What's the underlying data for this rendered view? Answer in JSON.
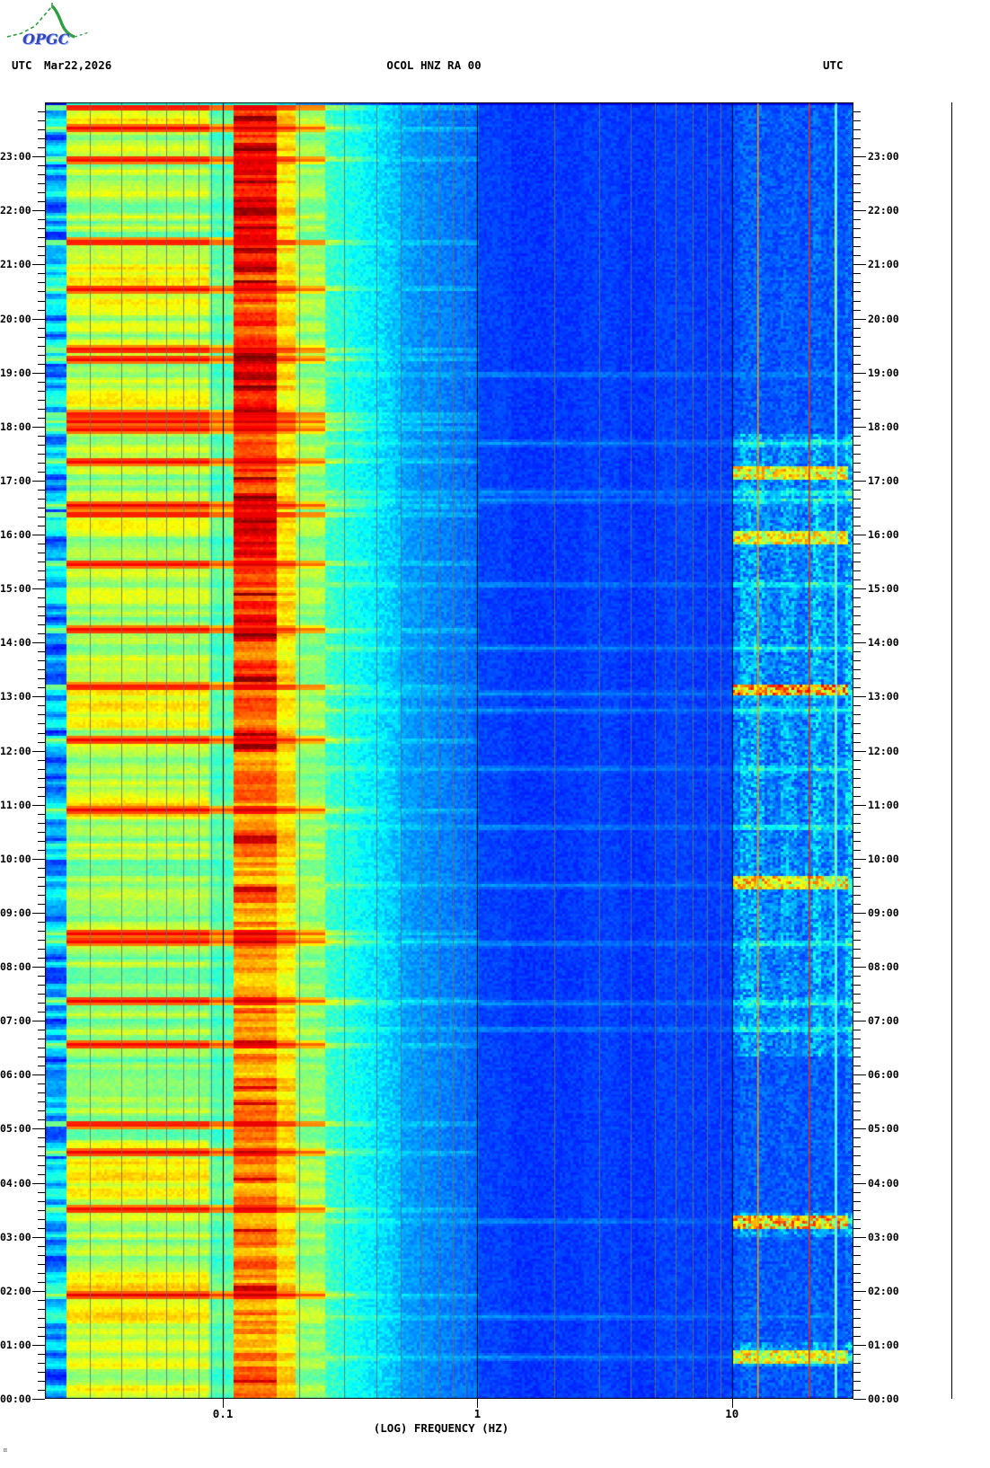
{
  "header": {
    "logo_text": "OPGC",
    "utc_left": "UTC",
    "date": "Mar22,2026",
    "title": "OCOL HNZ RA 00",
    "utc_right": "UTC"
  },
  "footer": {
    "corner_glyph": "¤"
  },
  "axes": {
    "x_title": "(LOG) FREQUENCY (HZ)",
    "x_tick_labels": [
      "0.1",
      "1",
      "10"
    ],
    "x_tick_hz": [
      0.1,
      1,
      10
    ],
    "minor_ticks_per_hour": 6,
    "time_labels": [
      "23:00",
      "22:00",
      "21:00",
      "20:00",
      "19:00",
      "18:00",
      "17:00",
      "16:00",
      "15:00",
      "14:00",
      "13:00",
      "12:00",
      "11:00",
      "10:00",
      "09:00",
      "08:00",
      "07:00",
      "06:00",
      "05:00",
      "04:00",
      "03:00",
      "02:00",
      "01:00",
      "00:00"
    ]
  },
  "colors": {
    "background": "#ffffff",
    "text": "#000000",
    "logo_green": "#2f9e40",
    "logo_blue": "#3347bb",
    "logo_blue_light": "#9ab0ff",
    "grid_gray": "#6e6e6e",
    "line_black": "#000000",
    "line_orange": "#ff9500",
    "line_red": "#e82a10",
    "line_cyan": "#55f0ff"
  },
  "chart_data": {
    "type": "heatmap",
    "subtype": "seismic spectrogram, 24 h, jet colormap, blue=low power, red=high power",
    "title": "OCOL HNZ RA 00",
    "xlabel": "(LOG) FREQUENCY (HZ)",
    "ylabel": "UTC time, 00:00 at bottom to 24:00 at top, hourly labels 00:00-23:00 on both sides, minor ticks every 10 min",
    "x_scale": "log",
    "x_range_hz": [
      0.02,
      30
    ],
    "x_tick_hz": [
      0.1,
      1,
      10
    ],
    "gridlines_hz": [
      0.03,
      0.04,
      0.05,
      0.06,
      0.07,
      0.08,
      0.09,
      0.2,
      0.3,
      0.4,
      0.5,
      0.6,
      0.7,
      0.8,
      0.9,
      2,
      3,
      4,
      5,
      6,
      7,
      8,
      9,
      20
    ],
    "black_lines_hz": [
      0.1,
      1,
      10
    ],
    "colored_vertical_lines": [
      {
        "hz": 12.6,
        "color": "#ff9500",
        "desc": "persistent narrowband orange line"
      },
      {
        "hz": 20.0,
        "color": "#e82a10",
        "desc": "persistent narrowband red line"
      },
      {
        "hz": 25.5,
        "color": "#55f0ff",
        "desc": "bright cyan narrowband line"
      }
    ],
    "bands": [
      {
        "hz": [
          0.02,
          0.0235
        ],
        "level": 0.26,
        "noise": 0.3,
        "desc": "striped dark-blue/cyan column"
      },
      {
        "hz": [
          0.0235,
          0.09
        ],
        "level": 0.55,
        "noise": 0.17,
        "desc": "yellow-green/cyan striped long-period band"
      },
      {
        "hz": [
          0.09,
          0.11
        ],
        "level": 0.43,
        "noise": 0.1,
        "desc": "cyan gap"
      },
      {
        "hz": [
          0.11,
          0.16
        ],
        "level": 0.8,
        "noise": 0.2,
        "desc": "ocean microseism peak, yellow-orange-red, darkest red in upper half"
      },
      {
        "hz": [
          0.16,
          0.19
        ],
        "level": 0.63,
        "noise": 0.13,
        "desc": "yellow shoulder"
      },
      {
        "hz": [
          0.19,
          0.25
        ],
        "level": 0.5,
        "noise": 0.12,
        "desc": "green-cyan"
      },
      {
        "hz": [
          0.25,
          0.5
        ],
        "level": 0.37,
        "noise": 0.09,
        "desc": "cyan to light blue speckle"
      },
      {
        "hz": [
          0.5,
          1
        ],
        "level": 0.24,
        "noise": 0.06,
        "desc": "medium blue speckle"
      },
      {
        "hz": [
          1,
          10
        ],
        "level": 0.15,
        "noise": 0.05,
        "desc": "dark blue, faint horizontal streaks"
      },
      {
        "hz": [
          10,
          30
        ],
        "level": 0.17,
        "noise": 0.12,
        "desc": "blue with cyan anthropogenic speckle and vertical bands"
      }
    ],
    "band_hot_windows_frac": [
      [
        0.03,
        0.13
      ],
      [
        0.19,
        0.24
      ],
      [
        0.3,
        0.35
      ],
      [
        0.395,
        0.415
      ]
    ],
    "low_band_cyan_window_frac": [
      0.55,
      0.8
    ],
    "hf_active_windows_frac": [
      [
        0.255,
        0.5
      ],
      [
        0.5,
        0.735
      ],
      [
        0.855,
        0.875
      ],
      [
        0.955,
        0.975
      ]
    ],
    "event_rows_frac": [
      0.003,
      0.019,
      0.043,
      0.107,
      0.143,
      0.19,
      0.197,
      0.24,
      0.245,
      0.251,
      0.276,
      0.31,
      0.317,
      0.355,
      0.406,
      0.45,
      0.491,
      0.545,
      0.64,
      0.646,
      0.692,
      0.726,
      0.787,
      0.809,
      0.853,
      0.919
    ],
    "hf_streak_rows_frac": [
      0.209,
      0.262,
      0.3,
      0.306,
      0.371,
      0.42,
      0.455,
      0.468,
      0.513,
      0.558,
      0.603,
      0.648,
      0.694,
      0.714,
      0.862,
      0.936,
      0.967
    ],
    "hf_blobs_frac": [
      {
        "tf": 0.285,
        "amp": 0.3
      },
      {
        "tf": 0.335,
        "amp": 0.3
      },
      {
        "tf": 0.452,
        "amp": 0.45
      },
      {
        "tf": 0.6,
        "amp": 0.35
      },
      {
        "tf": 0.862,
        "amp": 0.4
      },
      {
        "tf": 0.967,
        "amp": 0.3
      }
    ],
    "palette": "jet",
    "legend": "none",
    "grid": "log-decade gray verticals, black verticals at 0.1/1/10 Hz"
  },
  "layout_note": ""
}
